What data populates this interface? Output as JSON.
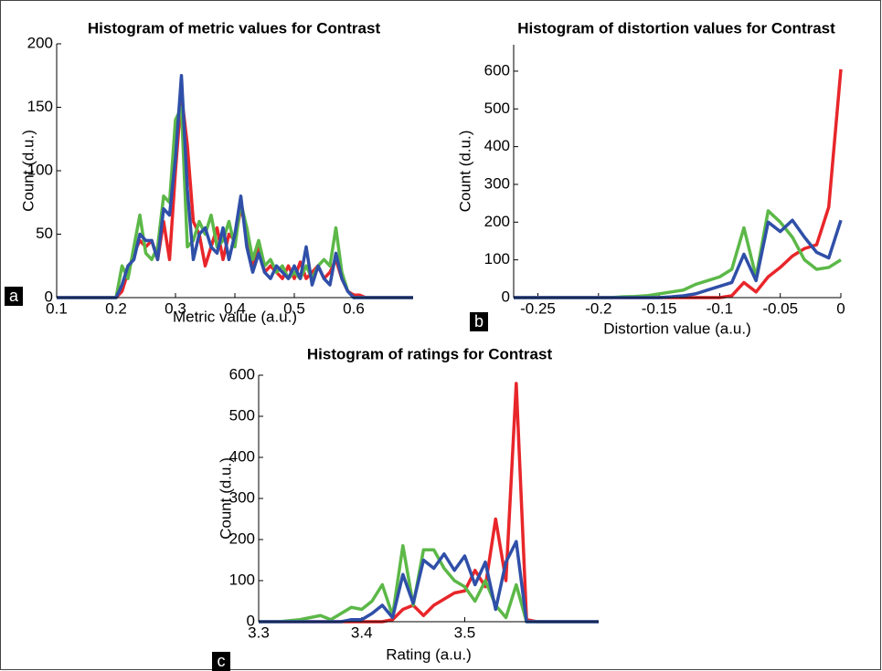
{
  "chart_data": [
    {
      "type": "line",
      "panel": "a",
      "title": "Histogram of metric values for Contrast",
      "x_label": "Metric value (a.u.)",
      "y_label": "Count  (d.u.)",
      "x": [
        0.1,
        0.2,
        0.21,
        0.22,
        0.23,
        0.24,
        0.25,
        0.26,
        0.27,
        0.28,
        0.29,
        0.3,
        0.31,
        0.32,
        0.33,
        0.34,
        0.35,
        0.36,
        0.37,
        0.38,
        0.39,
        0.4,
        0.41,
        0.42,
        0.43,
        0.44,
        0.45,
        0.46,
        0.47,
        0.48,
        0.49,
        0.5,
        0.51,
        0.52,
        0.53,
        0.54,
        0.55,
        0.56,
        0.57,
        0.58,
        0.59,
        0.6,
        0.61,
        0.62,
        0.63,
        0.7
      ],
      "series": [
        {
          "color": "#e8262a",
          "values": [
            0,
            0,
            5,
            20,
            35,
            45,
            40,
            45,
            30,
            60,
            30,
            100,
            160,
            120,
            60,
            50,
            25,
            40,
            55,
            30,
            50,
            45,
            70,
            55,
            25,
            40,
            20,
            25,
            20,
            15,
            25,
            15,
            28,
            15,
            20,
            25,
            15,
            20,
            30,
            15,
            5,
            2,
            2,
            0,
            0,
            0
          ]
        },
        {
          "color": "#5cb848",
          "values": [
            0,
            0,
            25,
            15,
            40,
            65,
            35,
            30,
            40,
            80,
            75,
            140,
            150,
            40,
            45,
            60,
            50,
            65,
            40,
            45,
            60,
            40,
            75,
            55,
            30,
            45,
            25,
            30,
            20,
            25,
            15,
            20,
            15,
            25,
            15,
            25,
            30,
            25,
            55,
            20,
            5,
            0,
            0,
            0,
            0,
            0
          ]
        },
        {
          "color": "#2f4fa8",
          "values": [
            0,
            0,
            10,
            25,
            30,
            50,
            45,
            45,
            30,
            70,
            65,
            110,
            175,
            85,
            30,
            50,
            55,
            40,
            35,
            55,
            30,
            50,
            80,
            40,
            20,
            35,
            20,
            15,
            25,
            20,
            15,
            25,
            15,
            40,
            10,
            25,
            15,
            10,
            35,
            15,
            5,
            0,
            0,
            0,
            0,
            0
          ]
        }
      ],
      "xlim": [
        0.1,
        0.7
      ],
      "ylim": [
        0,
        200
      ],
      "xticks": [
        0.1,
        0.2,
        0.3,
        0.4,
        0.5,
        0.6
      ],
      "yticks": [
        0,
        50,
        100,
        150,
        200
      ]
    },
    {
      "type": "line",
      "panel": "b",
      "title": "Histogram of distortion values for Contrast",
      "x_label": "Distortion value (a.u.)",
      "y_label": "Count  (d.u.)",
      "x": [
        -0.27,
        -0.2,
        -0.19,
        -0.18,
        -0.17,
        -0.16,
        -0.15,
        -0.14,
        -0.13,
        -0.12,
        -0.11,
        -0.1,
        -0.09,
        -0.08,
        -0.07,
        -0.06,
        -0.05,
        -0.04,
        -0.03,
        -0.02,
        -0.01,
        0
      ],
      "series": [
        {
          "color": "#e8262a",
          "values": [
            0,
            0,
            0,
            0,
            0,
            0,
            0,
            0,
            0,
            0,
            0,
            0,
            5,
            40,
            15,
            55,
            80,
            110,
            130,
            140,
            240,
            605
          ]
        },
        {
          "color": "#5cb848",
          "values": [
            0,
            0,
            0,
            2,
            3,
            5,
            10,
            15,
            20,
            35,
            45,
            55,
            75,
            185,
            55,
            230,
            200,
            160,
            100,
            75,
            80,
            100
          ]
        },
        {
          "color": "#2f4fa8",
          "values": [
            0,
            0,
            0,
            0,
            0,
            0,
            0,
            2,
            5,
            10,
            20,
            30,
            40,
            115,
            45,
            200,
            175,
            205,
            160,
            120,
            105,
            205
          ]
        }
      ],
      "xlim": [
        -0.27,
        0
      ],
      "ylim": [
        0,
        670
      ],
      "xticks": [
        -0.25,
        -0.2,
        -0.15,
        -0.1,
        -0.05,
        0
      ],
      "yticks": [
        0,
        100,
        200,
        300,
        400,
        500,
        600
      ]
    },
    {
      "type": "line",
      "panel": "c",
      "title": "Histogram of ratings for Contrast",
      "x_label": "Rating (a.u.)",
      "y_label": "Count (d.u.)",
      "x": [
        3.3,
        3.32,
        3.34,
        3.36,
        3.37,
        3.38,
        3.39,
        3.4,
        3.41,
        3.42,
        3.43,
        3.44,
        3.45,
        3.46,
        3.47,
        3.48,
        3.49,
        3.5,
        3.51,
        3.52,
        3.53,
        3.54,
        3.55,
        3.56,
        3.57,
        3.63
      ],
      "series": [
        {
          "color": "#e8262a",
          "values": [
            0,
            0,
            0,
            0,
            0,
            0,
            0,
            0,
            0,
            0,
            5,
            30,
            40,
            15,
            40,
            55,
            70,
            75,
            125,
            85,
            250,
            100,
            580,
            5,
            0,
            0
          ]
        },
        {
          "color": "#5cb848",
          "values": [
            0,
            0,
            5,
            15,
            5,
            20,
            35,
            30,
            50,
            90,
            15,
            185,
            40,
            175,
            175,
            130,
            100,
            85,
            50,
            100,
            40,
            10,
            90,
            0,
            0,
            0
          ]
        },
        {
          "color": "#2f4fa8",
          "values": [
            0,
            0,
            0,
            0,
            0,
            0,
            5,
            5,
            20,
            40,
            10,
            115,
            45,
            150,
            130,
            165,
            125,
            160,
            90,
            145,
            30,
            145,
            195,
            0,
            0,
            0
          ]
        }
      ],
      "xlim": [
        3.3,
        3.63
      ],
      "ylim": [
        0,
        600
      ],
      "xticks": [
        3.3,
        3.4,
        3.5
      ],
      "yticks": [
        0,
        100,
        200,
        300,
        400,
        500,
        600
      ]
    }
  ]
}
